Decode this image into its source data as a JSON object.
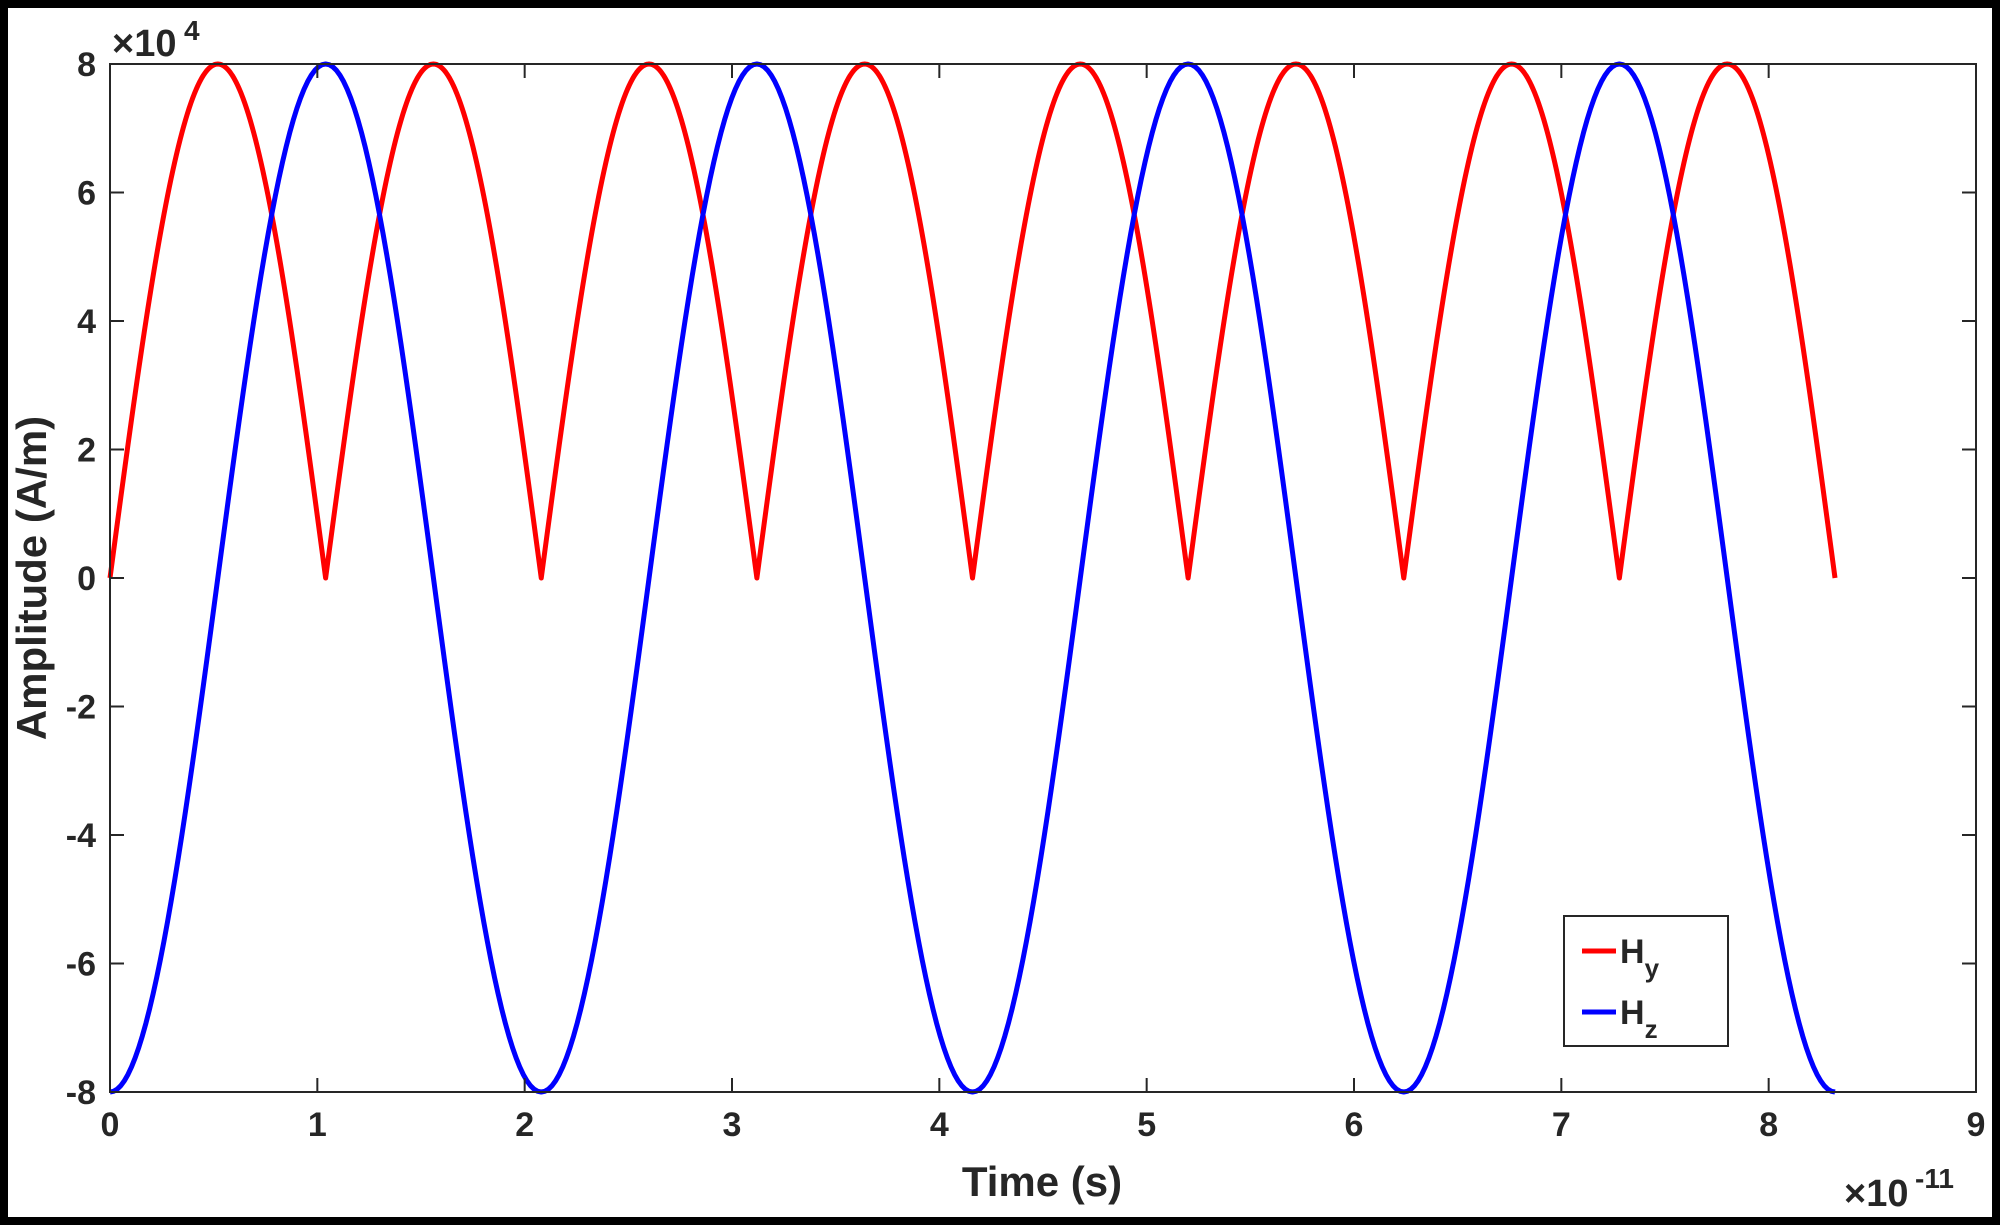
{
  "chart_data": {
    "type": "line",
    "xlabel": "Time (s)",
    "ylabel": "Amplitude (A/m)",
    "x_multiplier": {
      "base": "×10",
      "exponent": "-11"
    },
    "y_multiplier": {
      "base": "×10",
      "exponent": "4"
    },
    "xlim": [
      0,
      9
    ],
    "ylim": [
      -8,
      8
    ],
    "xticks": [
      0,
      1,
      2,
      3,
      4,
      5,
      6,
      7,
      8,
      9
    ],
    "yticks": [
      -8,
      -6,
      -4,
      -2,
      0,
      2,
      4,
      6,
      8
    ],
    "xtick_labels": [
      "0",
      "1",
      "2",
      "3",
      "4",
      "5",
      "6",
      "7",
      "8",
      "9"
    ],
    "ytick_labels": [
      "-8",
      "-6",
      "-4",
      "-2",
      "0",
      "2",
      "4",
      "6",
      "8"
    ],
    "grid": false,
    "legend_position": "bottom-right",
    "series": [
      {
        "name": "H",
        "name_subscript": "y",
        "color": "#ff0000",
        "x": [
          0,
          0.52,
          1.04,
          1.56,
          2.08,
          2.6,
          3.12,
          3.64,
          4.16,
          4.68,
          5.2,
          5.72,
          6.24,
          6.76,
          7.28,
          7.8,
          8.32
        ],
        "y": [
          0,
          8,
          0,
          8,
          0,
          8,
          0,
          8,
          0,
          8,
          0,
          8,
          0,
          8,
          0,
          8,
          0
        ]
      },
      {
        "name": "H",
        "name_subscript": "z",
        "color": "#0000ff",
        "x": [
          0,
          1.04,
          2.08,
          3.12,
          4.16,
          5.2,
          6.24,
          7.28,
          8.32
        ],
        "y": [
          -8,
          8,
          -8,
          8,
          -8,
          8,
          -8,
          8,
          -8
        ]
      }
    ]
  }
}
